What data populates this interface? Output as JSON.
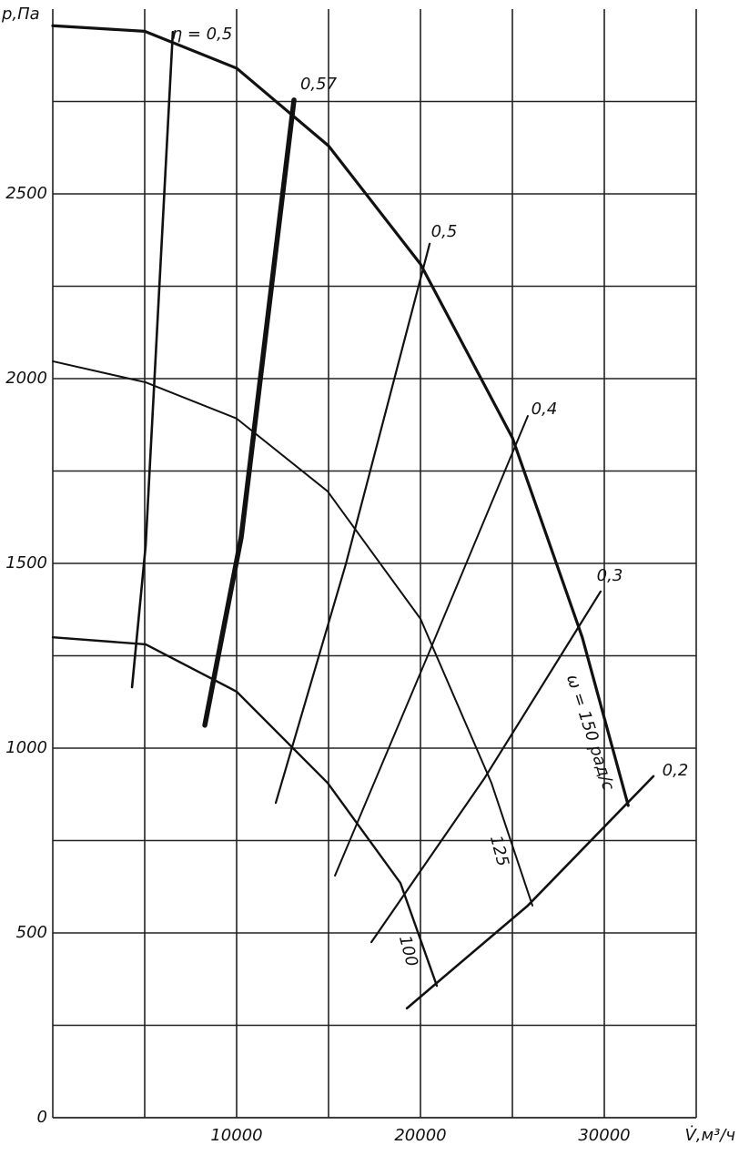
{
  "chart_data": {
    "type": "line",
    "y_label": "p,Па",
    "x_label": "V̇,м³/ч",
    "xlim": [
      0,
      35000
    ],
    "ylim": [
      0,
      3000
    ],
    "xticks": [
      10000,
      20000,
      30000
    ],
    "yticks": [
      0,
      500,
      1000,
      1500,
      2000,
      2500
    ],
    "xgrid": [
      5000,
      15000,
      25000,
      35000
    ],
    "ygrid": [
      250,
      750,
      1250,
      1750,
      2250,
      2750
    ],
    "grid": true,
    "series": [
      {
        "name": "ω = 150 рад/с",
        "color": "#111111",
        "x": [
          0,
          5000,
          10000,
          15000,
          20000,
          25000,
          28800,
          31300
        ],
        "values": [
          2955,
          2940,
          2840,
          2630,
          2310,
          1840,
          1300,
          845
        ]
      },
      {
        "name": "125",
        "color": "#111111",
        "x": [
          0,
          5050,
          10000,
          14950,
          20000,
          23860,
          26090
        ],
        "values": [
          2047,
          1990,
          1892,
          1695,
          1350,
          906,
          574
        ]
      },
      {
        "name": "100",
        "color": "#111111",
        "x": [
          0,
          5050,
          10000,
          14950,
          18910,
          20890
        ],
        "values": [
          1300,
          1281,
          1153,
          906,
          635,
          357
        ]
      },
      {
        "name": "η = 0,5",
        "color": "#111111",
        "x": [
          4310,
          5050,
          6530
        ],
        "values": [
          1165,
          1547,
          2938
        ]
      },
      {
        "name": "0,57",
        "color": "#111111",
        "x": [
          8270,
          10250,
          13120
        ],
        "values": [
          1062,
          1571,
          2754
        ]
      },
      {
        "name": "0,5",
        "color": "#111111",
        "x": [
          12130,
          15940,
          20500
        ],
        "values": [
          852,
          1498,
          2365
        ]
      },
      {
        "name": "0,4",
        "color": "#111111",
        "x": [
          15350,
          20400,
          25840
        ],
        "values": [
          655,
          1251,
          1899
        ]
      },
      {
        "name": "0,3",
        "color": "#111111",
        "x": [
          17330,
          23500,
          29800
        ],
        "values": [
          475,
          920,
          1424
        ]
      },
      {
        "name": "0,2",
        "color": "#111111",
        "x": [
          19260,
          25840,
          32670
        ],
        "values": [
          296,
          574,
          924
        ]
      }
    ]
  }
}
